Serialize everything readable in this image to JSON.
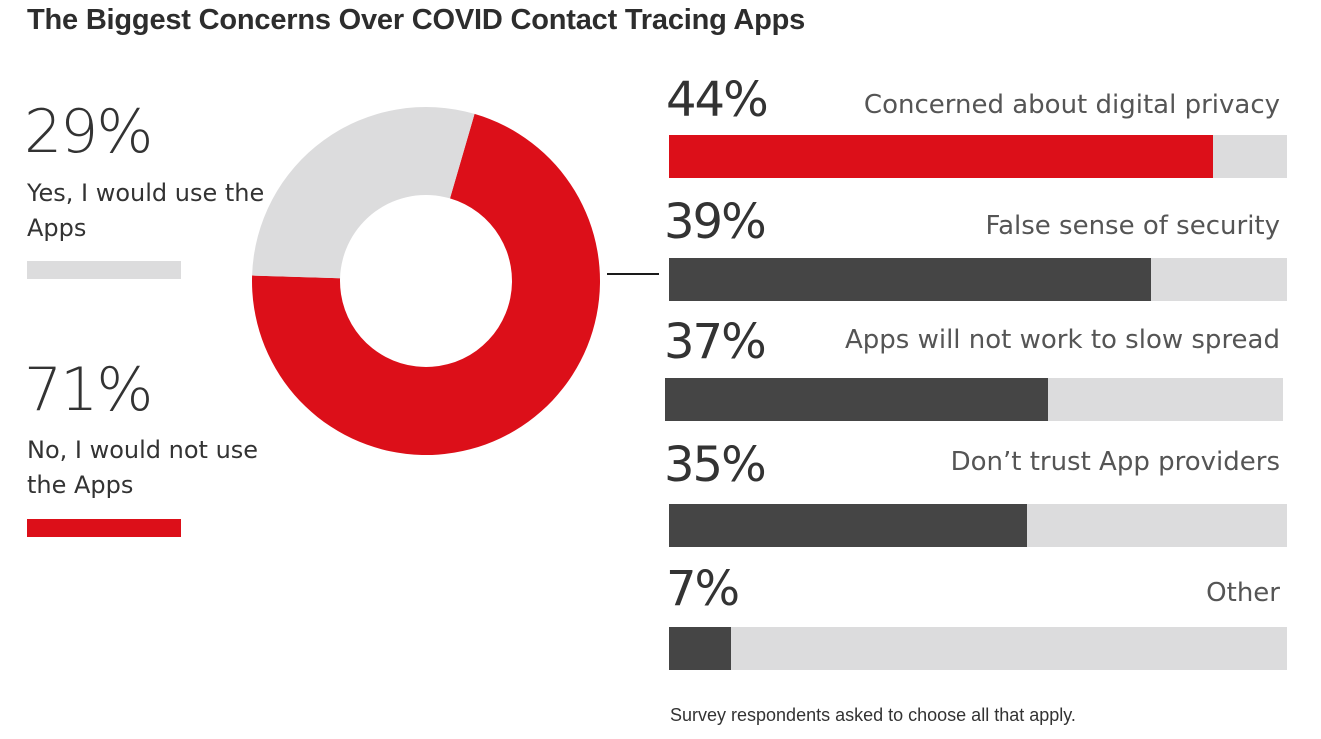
{
  "chart_data": [
    {
      "type": "pie",
      "title": "The Biggest Concerns Over COVID Contact Tracing Apps",
      "slices": [
        {
          "label": "Yes, I would use the Apps",
          "value": 29,
          "pct_text": "29%",
          "color": "#dcdcdd"
        },
        {
          "label": "No, I would not use the Apps",
          "value": 71,
          "pct_text": "71%",
          "color": "#dc0f19"
        }
      ]
    },
    {
      "type": "bar",
      "orientation": "horizontal",
      "categories": [
        "Concerned about digital privacy",
        "False sense of security",
        "Apps will not work to slow spread",
        "Don’t trust App providers",
        "Other"
      ],
      "values": [
        44,
        39,
        37,
        35,
        7
      ],
      "value_labels": [
        "44%",
        "39%",
        "37%",
        "35%",
        "7%"
      ],
      "colors": [
        "#dc0f19",
        "#454545",
        "#454545",
        "#454545",
        "#454545"
      ],
      "track_color": "#dcdcdd",
      "fill_fractions": [
        0.88,
        0.78,
        0.62,
        0.58,
        0.1
      ]
    }
  ],
  "footnote": "Survey respondents asked to choose all that apply."
}
